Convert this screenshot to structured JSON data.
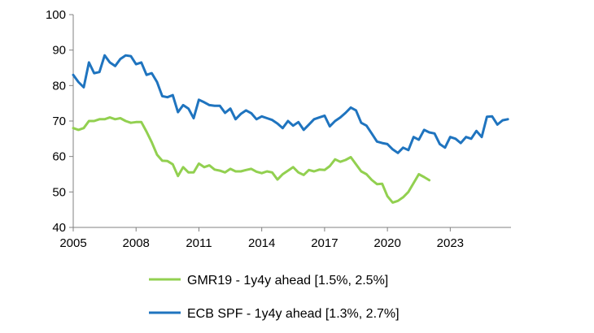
{
  "chart_data": {
    "type": "line",
    "title": "",
    "xlabel": "",
    "ylabel": "",
    "xlim": [
      2005,
      2025.9
    ],
    "ylim": [
      40,
      100
    ],
    "grid": false,
    "legend_position": "bottom",
    "x_ticks": [
      {
        "value": 2005,
        "label": "2005"
      },
      {
        "value": 2008,
        "label": "2008"
      },
      {
        "value": 2011,
        "label": "2011"
      },
      {
        "value": 2014,
        "label": "2014"
      },
      {
        "value": 2017,
        "label": "2017"
      },
      {
        "value": 2020,
        "label": "2020"
      },
      {
        "value": 2023,
        "label": "2023"
      }
    ],
    "y_ticks": [
      {
        "value": 40,
        "label": "40"
      },
      {
        "value": 50,
        "label": "50"
      },
      {
        "value": 60,
        "label": "60"
      },
      {
        "value": 70,
        "label": "70"
      },
      {
        "value": 80,
        "label": "80"
      },
      {
        "value": 90,
        "label": "90"
      },
      {
        "value": 100,
        "label": "100"
      }
    ],
    "series": [
      {
        "name": "GMR19 - 1y4y ahead [1.5%, 2.5%]",
        "color": "#92d050",
        "x": [
          2005.0,
          2005.25,
          2005.5,
          2005.75,
          2006.0,
          2006.25,
          2006.5,
          2006.75,
          2007.0,
          2007.25,
          2007.5,
          2007.75,
          2008.0,
          2008.25,
          2008.5,
          2008.75,
          2009.0,
          2009.25,
          2009.5,
          2009.75,
          2010.0,
          2010.25,
          2010.5,
          2010.75,
          2011.0,
          2011.25,
          2011.5,
          2011.75,
          2012.0,
          2012.25,
          2012.5,
          2012.75,
          2013.0,
          2013.25,
          2013.5,
          2013.75,
          2014.0,
          2014.25,
          2014.5,
          2014.75,
          2015.0,
          2015.25,
          2015.5,
          2015.75,
          2016.0,
          2016.25,
          2016.5,
          2016.75,
          2017.0,
          2017.25,
          2017.5,
          2017.75,
          2018.0,
          2018.25,
          2018.5,
          2018.75,
          2019.0,
          2019.25,
          2019.5,
          2019.75,
          2020.0,
          2020.25,
          2020.5,
          2020.75,
          2021.0,
          2021.25,
          2021.5,
          2021.75,
          2022.0
        ],
        "values": [
          68,
          67.5,
          68,
          70,
          70,
          70.5,
          70.5,
          71,
          70.5,
          70.8,
          70,
          69.5,
          69.7,
          69.7,
          67,
          64,
          60.5,
          58.8,
          58.7,
          57.8,
          54.5,
          57,
          55.5,
          55.5,
          58,
          57,
          57.5,
          56.3,
          56,
          55.5,
          56.5,
          55.8,
          55.8,
          56.2,
          56.5,
          55.7,
          55.3,
          55.8,
          55.5,
          53.5,
          55,
          56,
          57,
          55.5,
          54.8,
          56.2,
          55.8,
          56.3,
          56.2,
          57.3,
          59.2,
          58.5,
          59,
          59.8,
          57.8,
          55.8,
          55,
          53.4,
          52.2,
          52.3,
          48.8,
          47,
          47.5,
          48.5,
          50,
          52.5,
          55,
          54.2,
          53.3
        ]
      },
      {
        "name": "ECB SPF - 1y4y ahead [1.3%, 2.7%]",
        "color": "#1f74bf",
        "x": [
          2005.0,
          2005.25,
          2005.5,
          2005.75,
          2006.0,
          2006.25,
          2006.5,
          2006.75,
          2007.0,
          2007.25,
          2007.5,
          2007.75,
          2008.0,
          2008.25,
          2008.5,
          2008.75,
          2009.0,
          2009.25,
          2009.5,
          2009.75,
          2010.0,
          2010.25,
          2010.5,
          2010.75,
          2011.0,
          2011.25,
          2011.5,
          2011.75,
          2012.0,
          2012.25,
          2012.5,
          2012.75,
          2013.0,
          2013.25,
          2013.5,
          2013.75,
          2014.0,
          2014.25,
          2014.5,
          2014.75,
          2015.0,
          2015.25,
          2015.5,
          2015.75,
          2016.0,
          2016.25,
          2016.5,
          2016.75,
          2017.0,
          2017.25,
          2017.5,
          2017.75,
          2018.0,
          2018.25,
          2018.5,
          2018.75,
          2019.0,
          2019.25,
          2019.5,
          2019.75,
          2020.0,
          2020.25,
          2020.5,
          2020.75,
          2021.0,
          2021.25,
          2021.5,
          2021.75,
          2022.0,
          2022.25,
          2022.5,
          2022.75,
          2023.0,
          2023.25,
          2023.5,
          2023.75,
          2024.0,
          2024.25,
          2024.5,
          2024.75,
          2025.0,
          2025.25,
          2025.5,
          2025.75
        ],
        "values": [
          83,
          81,
          79.5,
          86.5,
          83.5,
          83.8,
          88.5,
          86.5,
          85.5,
          87.5,
          88.5,
          88.3,
          86,
          86.5,
          83,
          83.5,
          81,
          77,
          76.7,
          77.3,
          72.5,
          74.5,
          73.5,
          70.8,
          76,
          75.3,
          74.5,
          74.3,
          74.3,
          72.3,
          73.5,
          70.5,
          72,
          73,
          72.2,
          70.5,
          71.3,
          70.8,
          70.3,
          69.3,
          68,
          70,
          68.7,
          69.7,
          67.5,
          69,
          70.5,
          71,
          71.5,
          68.5,
          70,
          71,
          72.3,
          73.8,
          73,
          69.5,
          68.7,
          66.5,
          64.2,
          63.8,
          63.5,
          62,
          61,
          62.5,
          61.8,
          65.5,
          64.7,
          67.5,
          66.8,
          66.5,
          63.5,
          62.5,
          65.5,
          65,
          63.8,
          65.5,
          65,
          67.2,
          65.5,
          71.2,
          71.3,
          69,
          70.2,
          70.5
        ]
      }
    ]
  }
}
